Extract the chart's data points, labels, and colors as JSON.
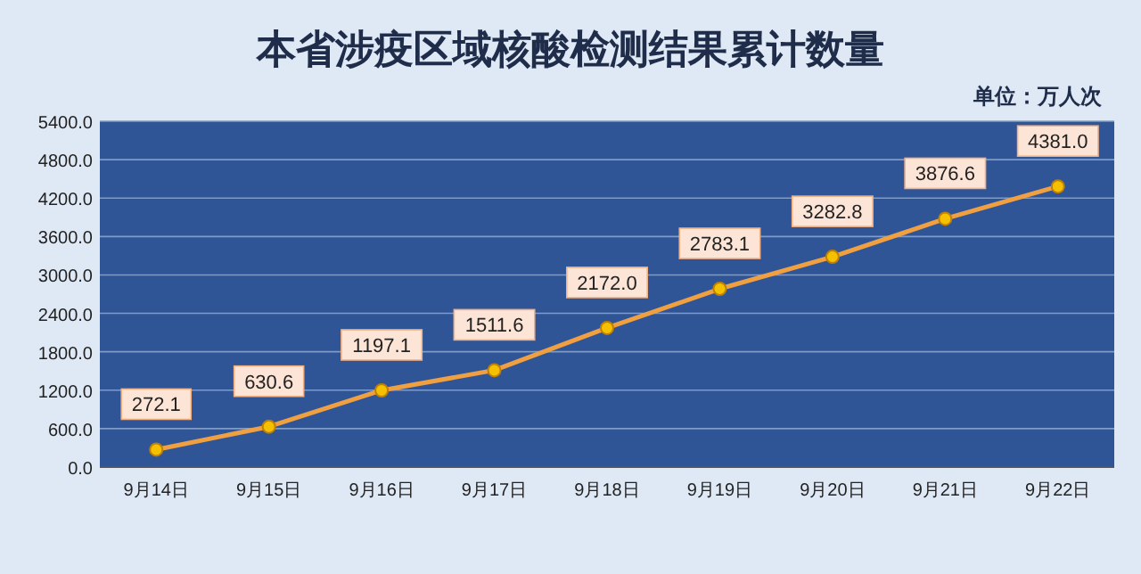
{
  "chart_data": {
    "type": "line",
    "title": "本省涉疫区域核酸检测结果累计数量",
    "subtitle": "单位：万人次",
    "categories": [
      "9月14日",
      "9月15日",
      "9月16日",
      "9月17日",
      "9月18日",
      "9月19日",
      "9月20日",
      "9月21日",
      "9月22日"
    ],
    "series": [
      {
        "color": "#f0a040",
        "values": [
          272.1,
          630.6,
          1197.1,
          1511.6,
          2172.0,
          2783.1,
          3282.8,
          3876.6,
          4381.0
        ],
        "value_labels": [
          "272.1",
          "630.6",
          "1197.1",
          "1511.6",
          "2172.0",
          "2783.1",
          "3282.8",
          "3876.6",
          "4381.0"
        ]
      }
    ],
    "ylim": [
      0,
      5400
    ],
    "yticks": [
      {
        "value": 0,
        "label": "0.0"
      },
      {
        "value": 600,
        "label": "600.0"
      },
      {
        "value": 1200,
        "label": "1200.0"
      },
      {
        "value": 1800,
        "label": "1800.0"
      },
      {
        "value": 2400,
        "label": "2400.0"
      },
      {
        "value": 3000,
        "label": "3000.0"
      },
      {
        "value": 3600,
        "label": "3600.0"
      },
      {
        "value": 4200,
        "label": "4200.0"
      },
      {
        "value": 4800,
        "label": "4800.0"
      },
      {
        "value": 5400,
        "label": "5400.0"
      }
    ],
    "grid": "y",
    "marker": "circle",
    "line_style": "solid"
  }
}
